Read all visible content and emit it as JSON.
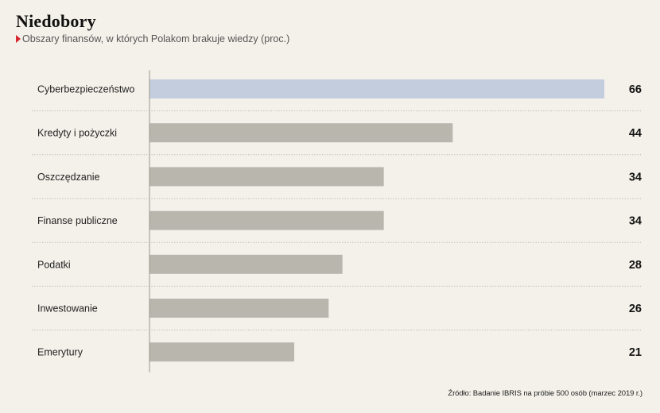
{
  "title": "Niedobory",
  "subtitle": "Obszary finansów, w których Polakom brakuje wiedzy (proc.)",
  "source": "Źródło: Badanie IBRIS na próbie 500 osób (marzec 2019 r.)",
  "colors": {
    "highlight": "#c3cddd",
    "bar": "#b9b7ad",
    "accent": "#d7282f",
    "gridline": "#b9b6ad",
    "axis": "#9a978e"
  },
  "chart_data": {
    "type": "bar",
    "orientation": "horizontal",
    "title": "Niedobory",
    "subtitle": "Obszary finansów, w których Polakom brakuje wiedzy (proc.)",
    "categories": [
      "Cyberbezpieczeństwo",
      "Kredyty i pożyczki",
      "Oszczędzanie",
      "Finanse publiczne",
      "Podatki",
      "Inwestowanie",
      "Emerytury"
    ],
    "values": [
      66,
      44,
      34,
      34,
      28,
      26,
      21
    ],
    "value_labels": [
      "66",
      "44",
      "34",
      "34",
      "28",
      "26",
      "21"
    ],
    "highlight_index": 0,
    "xlim": [
      0,
      66
    ],
    "grid": false,
    "legend": "none"
  }
}
